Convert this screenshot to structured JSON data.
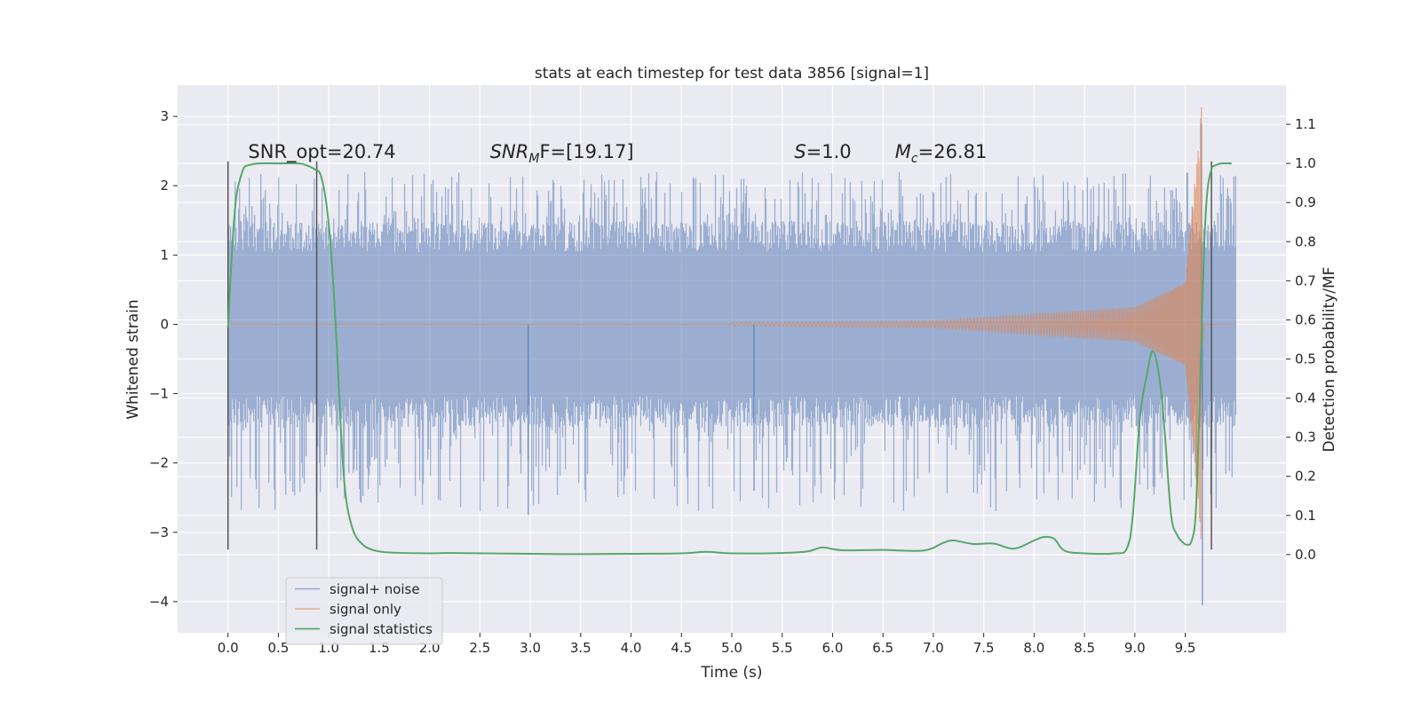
{
  "chart_data": {
    "type": "line",
    "title": "stats at each timestep for test data 3856 [signal=1]",
    "xlabel": "Time (s)",
    "ylabel": "Whitened strain",
    "ylabel_right": "Detection probability/MF",
    "xlim": [
      -0.5,
      10.5
    ],
    "ylim": [
      -4.45,
      3.45
    ],
    "ylim_right": [
      -0.2,
      1.2
    ],
    "x_ticks": [
      0.0,
      0.5,
      1.0,
      1.5,
      2.0,
      2.5,
      3.0,
      3.5,
      4.0,
      4.5,
      5.0,
      5.5,
      6.0,
      6.5,
      7.0,
      7.5,
      8.0,
      8.5,
      9.0,
      9.5
    ],
    "x_tick_labels": [
      "0.0",
      "0.5",
      "1.0",
      "1.5",
      "2.0",
      "2.5",
      "3.0",
      "3.5",
      "4.0",
      "4.5",
      "5.0",
      "5.5",
      "6.0",
      "6.5",
      "7.0",
      "7.5",
      "8.0",
      "8.5",
      "9.0",
      "9.5"
    ],
    "y_ticks": [
      3,
      2,
      1,
      0,
      -1,
      -2,
      -3,
      -4
    ],
    "y_tick_labels": [
      "3",
      "2",
      "1",
      "0",
      "−1",
      "−2",
      "−3",
      "−4"
    ],
    "y_right_ticks": [
      1.1,
      1.0,
      0.9,
      0.8,
      0.7,
      0.6,
      0.5,
      0.4,
      0.3,
      0.2,
      0.1,
      0.0
    ],
    "y_right_tick_labels": [
      "1.1",
      "1.0",
      "0.9",
      "0.8",
      "0.7",
      "0.6",
      "0.5",
      "0.4",
      "0.3",
      "0.2",
      "0.1",
      "0.0"
    ],
    "grid": true,
    "legend_position": "lower-left",
    "series": [
      {
        "name": "signal+ noise",
        "axis": "left",
        "color": "#4c72b0",
        "time_range": [
          0.0,
          10.0
        ],
        "typical_range": [
          -1.3,
          1.3
        ],
        "peak_max": 2.2,
        "peak_min": -2.7,
        "spikes": [
          {
            "x": 9.67,
            "value": -4.05
          },
          {
            "x": 9.66,
            "value": 2.9
          },
          {
            "x": 2.98,
            "value": -2.75
          },
          {
            "x": 5.22,
            "value": -2.4
          },
          {
            "x": 0.88,
            "value": -2.4
          }
        ]
      },
      {
        "name": "signal only",
        "axis": "left",
        "color": "#dd8452",
        "chirp": {
          "start_time": 5.0,
          "merger_time": 9.66,
          "amplitude_at_start": 0.02,
          "amplitude_at_7s": 0.05,
          "amplitude_at_9s": 0.25,
          "amplitude_at_9_5s": 0.6,
          "peak_value": 3.13,
          "trough_value": -3.1
        }
      },
      {
        "name": "signal statistics",
        "axis": "right",
        "color": "#55a868",
        "x": [
          0.0,
          0.04,
          0.08,
          0.12,
          0.16,
          0.2,
          0.3,
          0.5,
          0.7,
          0.78,
          0.86,
          0.92,
          0.98,
          1.03,
          1.08,
          1.12,
          1.16,
          1.21,
          1.3,
          1.5,
          2.0,
          2.2,
          3.0,
          3.5,
          4.0,
          4.5,
          4.75,
          5.0,
          5.5,
          5.75,
          5.9,
          6.1,
          6.5,
          6.9,
          7.1,
          7.2,
          7.4,
          7.6,
          7.8,
          8.0,
          8.1,
          8.2,
          8.3,
          8.5,
          8.8,
          8.92,
          8.98,
          9.05,
          9.12,
          9.18,
          9.25,
          9.3,
          9.36,
          9.42,
          9.48,
          9.52,
          9.56,
          9.6,
          9.63,
          9.66,
          9.69,
          9.72,
          9.76,
          9.8,
          9.86,
          9.92,
          9.96
        ],
        "values": [
          0.58,
          0.78,
          0.91,
          0.96,
          0.99,
          0.995,
          1.0,
          1.0,
          1.0,
          0.995,
          0.985,
          0.97,
          0.89,
          0.75,
          0.53,
          0.32,
          0.17,
          0.09,
          0.035,
          0.008,
          0.003,
          0.004,
          0.002,
          0.001,
          0.002,
          0.003,
          0.007,
          0.003,
          0.004,
          0.008,
          0.018,
          0.011,
          0.012,
          0.01,
          0.03,
          0.036,
          0.027,
          0.028,
          0.015,
          0.036,
          0.045,
          0.04,
          0.01,
          0.003,
          0.003,
          0.015,
          0.1,
          0.35,
          0.46,
          0.52,
          0.44,
          0.3,
          0.1,
          0.05,
          0.03,
          0.025,
          0.033,
          0.09,
          0.28,
          0.55,
          0.8,
          0.93,
          0.985,
          0.995,
          1.0,
          1.0,
          1.0
        ]
      }
    ],
    "vertical_lines": [
      {
        "x": 0.0,
        "y_range": [
          -3.25,
          2.35
        ],
        "color": "#555555"
      },
      {
        "x": 0.88,
        "y_range": [
          -3.25,
          2.35
        ],
        "color": "#555555"
      },
      {
        "x": 9.76,
        "y_range": [
          -3.25,
          2.35
        ],
        "color": "#555555"
      }
    ],
    "annotations": [
      {
        "id": "snr-opt",
        "x": 0.2,
        "y": 2.4,
        "text": "SNR_opt=20.74"
      },
      {
        "id": "snr-mf",
        "x": 2.6,
        "y": 2.4,
        "var": "SNR",
        "sub": "M",
        "rest": "F=[19.17]"
      },
      {
        "id": "s-value",
        "x": 5.62,
        "y": 2.4,
        "var": "S",
        "rest": "=1.0"
      },
      {
        "id": "mc-value",
        "x": 6.62,
        "y": 2.4,
        "var": "M",
        "sub": "c",
        "rest": "=26.81"
      }
    ]
  }
}
